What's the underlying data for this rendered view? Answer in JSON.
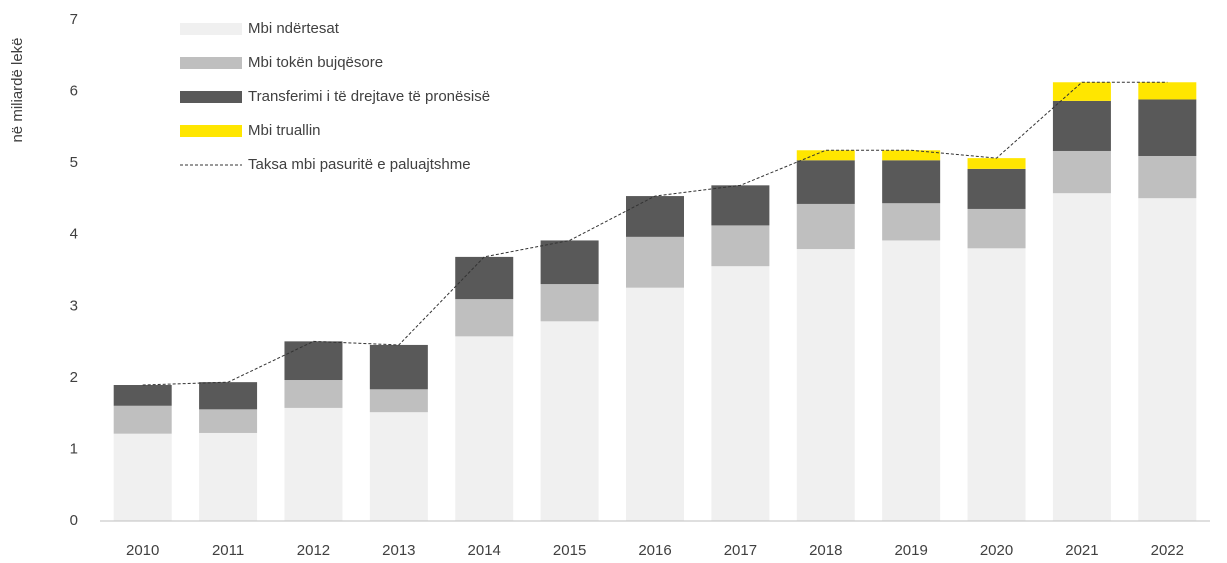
{
  "chart_data": {
    "type": "bar",
    "stacked": true,
    "y_axis_label": "në miliardë lekë",
    "categories": [
      "2010",
      "2011",
      "2012",
      "2013",
      "2014",
      "2015",
      "2016",
      "2017",
      "2018",
      "2019",
      "2020",
      "2021",
      "2022"
    ],
    "series": [
      {
        "name": "Mbi ndërtesat",
        "color": "#f0f0f0",
        "values": [
          1.22,
          1.23,
          1.58,
          1.52,
          2.58,
          2.79,
          3.26,
          3.56,
          3.8,
          3.92,
          3.81,
          4.58,
          4.51
        ]
      },
      {
        "name": "Mbi tokën bujqësore",
        "color": "#bfbfbf",
        "values": [
          0.39,
          0.33,
          0.39,
          0.32,
          0.52,
          0.52,
          0.71,
          0.57,
          0.63,
          0.52,
          0.55,
          0.59,
          0.59
        ]
      },
      {
        "name": "Transferimi i të drejtave të pronësisë",
        "color": "#595959",
        "values": [
          0.29,
          0.38,
          0.54,
          0.62,
          0.59,
          0.61,
          0.57,
          0.56,
          0.61,
          0.6,
          0.56,
          0.7,
          0.79
        ]
      },
      {
        "name": "Mbi truallin",
        "color": "#ffe600",
        "values": [
          0,
          0,
          0,
          0,
          0,
          0,
          0,
          0,
          0.14,
          0.14,
          0.15,
          0.26,
          0.24
        ]
      },
      {
        "name": "Taksa mbi pasuritë e paluajtshme",
        "color": "#333333",
        "type": "line",
        "dashed": true,
        "values": [
          1.9,
          1.94,
          2.51,
          2.46,
          3.69,
          3.92,
          4.54,
          4.69,
          5.18,
          5.18,
          5.07,
          6.13,
          6.13
        ]
      }
    ],
    "ylim": [
      0,
      7
    ],
    "yticks": [
      0,
      1,
      2,
      3,
      4,
      5,
      6,
      7
    ],
    "grid": false,
    "legend": "top-left"
  }
}
